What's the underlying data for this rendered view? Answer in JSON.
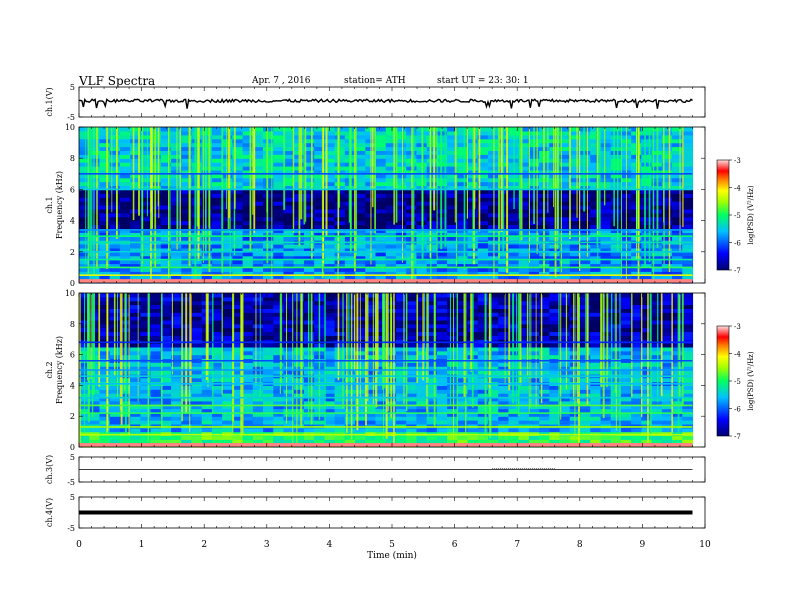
{
  "header": {
    "title": "VLF  Spectra",
    "date": "Apr. 7  , 2016",
    "station": "station= ATH",
    "start": "start  UT  =    23: 30: 1"
  },
  "chart_data": [
    {
      "type": "line",
      "title": "",
      "ylabel": "ch.1(V)",
      "ylim": [
        -5,
        5
      ],
      "yticks": [
        "5",
        "-5"
      ],
      "description_values": {
        "mean": 0.4,
        "noise_amplitude": 0.5
      }
    },
    {
      "type": "heatmap",
      "ylabel_channel": "ch.1",
      "ylabel": "Frequency  (kHz)",
      "ylim": [
        0,
        10
      ],
      "yticks": [
        "0",
        "2",
        "4",
        "6",
        "8",
        "10"
      ],
      "colorbar": {
        "label": "log(PSD) (V²/Hz)",
        "ticks": [
          "-3",
          "-4",
          "-5",
          "-6",
          "-7"
        ],
        "range": [
          -7,
          -3
        ]
      },
      "bands_khz": [
        [
          0.1,
          -3.2
        ],
        [
          0.5,
          -5.0
        ],
        [
          1.0,
          -5.6
        ],
        [
          1.5,
          -5.8
        ],
        [
          2.0,
          -6.0
        ],
        [
          2.6,
          -5.9
        ],
        [
          3.0,
          -5.7
        ],
        [
          3.4,
          -6.2
        ],
        [
          6.0,
          -6.0
        ],
        [
          7.0,
          -6.4
        ]
      ]
    },
    {
      "type": "heatmap",
      "ylabel_channel": "ch.2",
      "ylabel": "Frequency  (kHz)",
      "ylim": [
        0,
        10
      ],
      "yticks": [
        "0",
        "2",
        "4",
        "6",
        "8",
        "10"
      ],
      "colorbar": {
        "label": "log(PSD) (V²/Hz)",
        "ticks": [
          "-3",
          "-4",
          "-5",
          "-6",
          "-7"
        ],
        "range": [
          -7,
          -3
        ]
      },
      "bands_khz": [
        [
          0.2,
          -3.5
        ],
        [
          0.8,
          -5.2
        ],
        [
          1.3,
          -5.3
        ],
        [
          2.2,
          -5.6
        ],
        [
          2.7,
          -5.5
        ],
        [
          3.2,
          -6.0
        ],
        [
          4.1,
          -6.1
        ],
        [
          4.6,
          -6.0
        ],
        [
          5.0,
          -6.2
        ],
        [
          5.6,
          -6.4
        ],
        [
          6.8,
          -6.5
        ]
      ]
    },
    {
      "type": "line",
      "ylabel": "ch.3(V)",
      "ylim": [
        -5,
        5
      ],
      "yticks": [
        "5",
        "-5"
      ],
      "constant_value": 0
    },
    {
      "type": "line",
      "ylabel": "ch.4(V)",
      "ylim": [
        -5,
        5
      ],
      "yticks": [
        "5",
        "-5"
      ],
      "constant_value": 0
    }
  ],
  "xaxis": {
    "label": "Time  (min)",
    "xlim": [
      0,
      10
    ],
    "ticks": [
      "0",
      "1",
      "2",
      "3",
      "4",
      "5",
      "6",
      "7",
      "8",
      "9",
      "10"
    ],
    "data_end": 9.8
  },
  "colors": {
    "colormap": [
      "#000080",
      "#0000ff",
      "#00bfff",
      "#00ff80",
      "#80ff00",
      "#ffff00",
      "#ff8000",
      "#ff0000",
      "#ffd0d0"
    ],
    "trace": "#000000",
    "frame": "#000000",
    "background": "#ffffff"
  }
}
